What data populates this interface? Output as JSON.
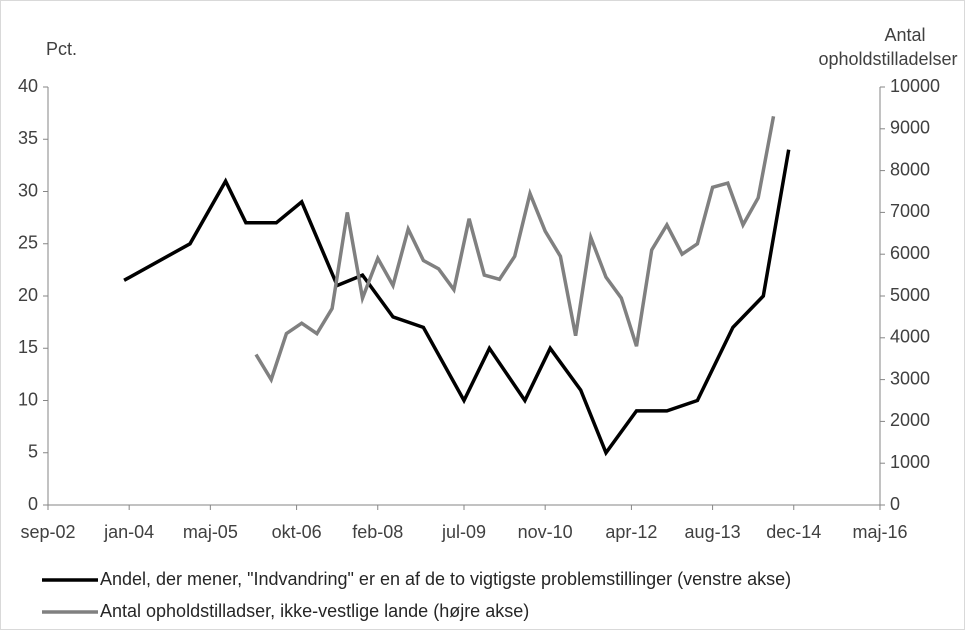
{
  "chart_data": {
    "type": "line",
    "ylabel": "Pct.",
    "y2label": [
      "Antal",
      "opholdstilladelser"
    ],
    "xlim": [
      "2002-09",
      "2016-05"
    ],
    "xticks": [
      {
        "value": "2002-09",
        "label": "sep-02"
      },
      {
        "value": "2004-01",
        "label": "jan-04"
      },
      {
        "value": "2005-05",
        "label": "maj-05"
      },
      {
        "value": "2006-10",
        "label": "okt-06"
      },
      {
        "value": "2008-02",
        "label": "feb-08"
      },
      {
        "value": "2009-07",
        "label": "jul-09"
      },
      {
        "value": "2010-11",
        "label": "nov-10"
      },
      {
        "value": "2012-04",
        "label": "apr-12"
      },
      {
        "value": "2013-08",
        "label": "aug-13"
      },
      {
        "value": "2014-12",
        "label": "dec-14"
      },
      {
        "value": "2016-05",
        "label": "maj-16"
      }
    ],
    "ylim": [
      0,
      40
    ],
    "yticks": [
      0,
      5,
      10,
      15,
      20,
      25,
      30,
      35,
      40
    ],
    "y2lim": [
      0,
      10000
    ],
    "y2ticks": [
      0,
      1000,
      2000,
      3000,
      4000,
      5000,
      6000,
      7000,
      8000,
      9000,
      10000
    ],
    "grid": false,
    "series": [
      {
        "name": "Andel, der mener, \"Indvandring\" er en af de to vigtigste problemstillinger (venstre akse)",
        "color": "#000000",
        "x": [
          "2003-12",
          "2005-01",
          "2005-08",
          "2005-12",
          "2006-06",
          "2006-11",
          "2007-06",
          "2007-11",
          "2008-05",
          "2008-11",
          "2009-07",
          "2009-12",
          "2010-07",
          "2010-12",
          "2011-06",
          "2011-11",
          "2012-05",
          "2012-11",
          "2013-05",
          "2013-12",
          "2014-06",
          "2014-11"
        ],
        "values": [
          21.5,
          25,
          31,
          27,
          27,
          29,
          21,
          22,
          18,
          17,
          10,
          15,
          10,
          15,
          11,
          5,
          9,
          9,
          10,
          17,
          20,
          34
        ]
      },
      {
        "name": "Antal opholdstilladser, ikke-vestlige lande (højre akse)",
        "color": "#808080",
        "axis": "y2",
        "x": [
          "2006-02",
          "2006-05",
          "2006-08",
          "2006-11",
          "2007-02",
          "2007-05",
          "2007-08",
          "2007-11",
          "2008-02",
          "2008-05",
          "2008-08",
          "2008-11",
          "2009-02",
          "2009-05",
          "2009-08",
          "2009-11",
          "2010-02",
          "2010-05",
          "2010-08",
          "2010-11",
          "2011-02",
          "2011-05",
          "2011-08",
          "2011-11",
          "2012-02",
          "2012-05",
          "2012-08",
          "2012-11",
          "2013-02",
          "2013-05",
          "2013-08",
          "2013-11",
          "2014-02",
          "2014-05",
          "2014-08"
        ],
        "values": [
          3600,
          3000,
          4100,
          4350,
          4100,
          4700,
          7000,
          4950,
          5900,
          5250,
          6600,
          5850,
          5650,
          5150,
          6850,
          5500,
          5400,
          5950,
          7450,
          6550,
          5950,
          4050,
          6400,
          5450,
          4950,
          3800,
          6100,
          6700,
          6000,
          6250,
          7600,
          7700,
          6700,
          7350,
          9300
        ]
      }
    ]
  }
}
